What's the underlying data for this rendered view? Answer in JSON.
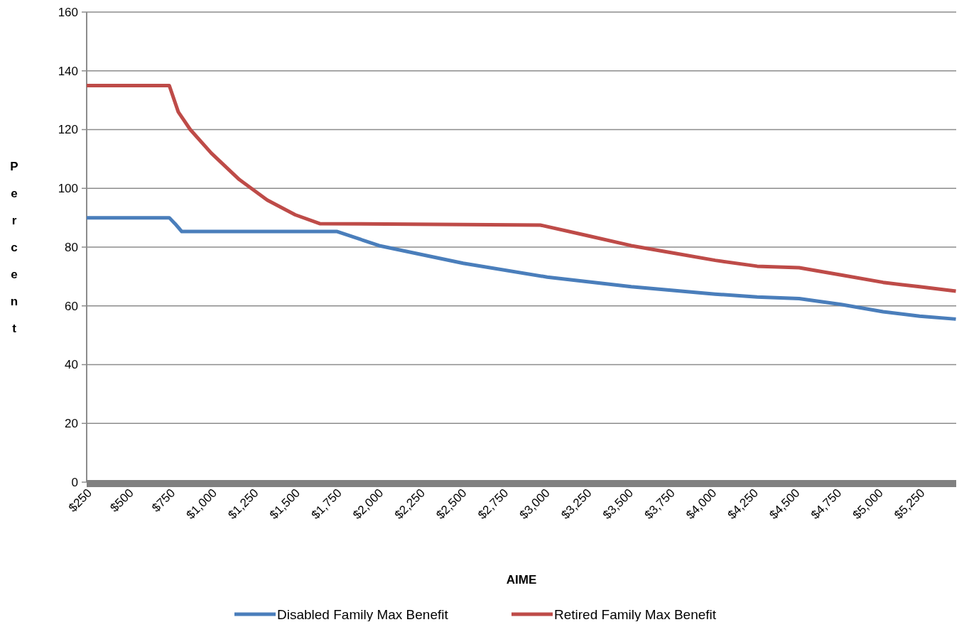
{
  "chart_data": {
    "type": "line",
    "xlabel": "AIME",
    "ylabel": "Percent",
    "xlim": [
      250,
      5470
    ],
    "ylim": [
      0,
      160
    ],
    "xticks": [
      {
        "value": 250,
        "label": "$250"
      },
      {
        "value": 500,
        "label": "$500"
      },
      {
        "value": 750,
        "label": "$750"
      },
      {
        "value": 1000,
        "label": "$1,000"
      },
      {
        "value": 1250,
        "label": "$1,250"
      },
      {
        "value": 1500,
        "label": "$1,500"
      },
      {
        "value": 1750,
        "label": "$1,750"
      },
      {
        "value": 2000,
        "label": "$2,000"
      },
      {
        "value": 2250,
        "label": "$2,250"
      },
      {
        "value": 2500,
        "label": "$2,500"
      },
      {
        "value": 2750,
        "label": "$2,750"
      },
      {
        "value": 3000,
        "label": "$3,000"
      },
      {
        "value": 3250,
        "label": "$3,250"
      },
      {
        "value": 3500,
        "label": "$3,500"
      },
      {
        "value": 3750,
        "label": "$3,750"
      },
      {
        "value": 4000,
        "label": "$4,000"
      },
      {
        "value": 4250,
        "label": "$4,250"
      },
      {
        "value": 4500,
        "label": "$4,500"
      },
      {
        "value": 4750,
        "label": "$4,750"
      },
      {
        "value": 5000,
        "label": "$5,000"
      },
      {
        "value": 5250,
        "label": "$5,250"
      }
    ],
    "yticks": [
      0,
      20,
      40,
      60,
      80,
      100,
      120,
      140,
      160
    ],
    "grid": "y",
    "legend": "bottom",
    "marker": "none",
    "line_style": "solid",
    "series": [
      {
        "name": "Disabled Family Max Benefit",
        "color": "#4a7ebb",
        "x": [
          250,
          746,
          780,
          821,
          1754,
          2006,
          2510,
          3015,
          3519,
          4023,
          4275,
          4527,
          4779,
          5031,
          5250,
          5468
        ],
        "values": [
          90,
          90,
          88,
          85.3,
          85.3,
          80.5,
          74.5,
          69.8,
          66.5,
          64,
          63,
          62.5,
          60.5,
          58,
          56.5,
          55.5
        ]
      },
      {
        "name": "Retired Family Max Benefit",
        "color": "#be4b48",
        "x": [
          250,
          746,
          800,
          872,
          998,
          1166,
          1334,
          1502,
          1649,
          2973,
          3250,
          3519,
          3770,
          4023,
          4275,
          4527,
          4779,
          5031,
          5250,
          5468
        ],
        "values": [
          135,
          135,
          126,
          120,
          112,
          103,
          96,
          91,
          88,
          87.5,
          84,
          80.5,
          78,
          75.5,
          73.5,
          73,
          70.5,
          68,
          66.5,
          65
        ]
      }
    ]
  }
}
